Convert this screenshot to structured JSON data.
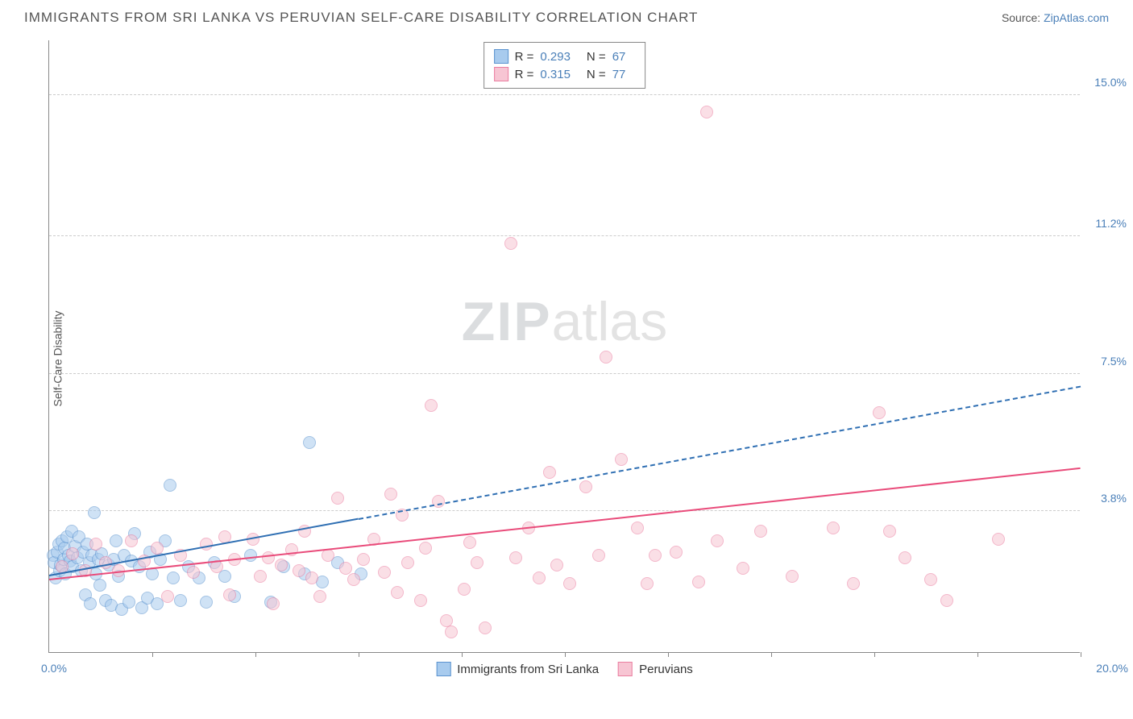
{
  "title": "IMMIGRANTS FROM SRI LANKA VS PERUVIAN SELF-CARE DISABILITY CORRELATION CHART",
  "source_label": "Source: ",
  "source_link_text": "ZipAtlas.com",
  "watermark_zip": "ZIP",
  "watermark_atlas": "atlas",
  "chart": {
    "type": "scatter",
    "ylabel": "Self-Care Disability",
    "xlim": [
      0,
      20
    ],
    "ylim": [
      0,
      16.5
    ],
    "x_start_label": "0.0%",
    "x_end_label": "20.0%",
    "y_gridlines": [
      {
        "value": 3.8,
        "label": "3.8%"
      },
      {
        "value": 7.5,
        "label": "7.5%"
      },
      {
        "value": 11.2,
        "label": "11.2%"
      },
      {
        "value": 15.0,
        "label": "15.0%"
      }
    ],
    "x_tick_step": 2,
    "background_color": "#ffffff",
    "grid_color": "#cccccc",
    "point_radius": 8,
    "point_opacity": 0.55,
    "series": [
      {
        "key": "sri_lanka",
        "label": "Immigrants from Sri Lanka",
        "color_fill": "#a8cbee",
        "color_stroke": "#5b93cf",
        "R": "0.293",
        "N": "67",
        "trend": {
          "x1": 0,
          "y1": 2.1,
          "x2": 20,
          "y2": 7.2,
          "solid_until_x": 6.0
        },
        "points": [
          [
            0.08,
            2.6
          ],
          [
            0.1,
            2.4
          ],
          [
            0.12,
            2.0
          ],
          [
            0.15,
            2.7
          ],
          [
            0.18,
            2.9
          ],
          [
            0.2,
            2.2
          ],
          [
            0.22,
            2.35
          ],
          [
            0.25,
            3.0
          ],
          [
            0.28,
            2.5
          ],
          [
            0.3,
            2.8
          ],
          [
            0.32,
            2.1
          ],
          [
            0.35,
            3.1
          ],
          [
            0.38,
            2.6
          ],
          [
            0.4,
            2.45
          ],
          [
            0.43,
            3.25
          ],
          [
            0.46,
            2.3
          ],
          [
            0.5,
            2.85
          ],
          [
            0.55,
            2.55
          ],
          [
            0.58,
            3.1
          ],
          [
            0.62,
            2.2
          ],
          [
            0.66,
            2.7
          ],
          [
            0.7,
            1.55
          ],
          [
            0.74,
            2.9
          ],
          [
            0.78,
            2.4
          ],
          [
            0.8,
            1.3
          ],
          [
            0.83,
            2.6
          ],
          [
            0.88,
            3.75
          ],
          [
            0.9,
            2.1
          ],
          [
            0.95,
            2.5
          ],
          [
            0.98,
            1.8
          ],
          [
            1.02,
            2.65
          ],
          [
            1.1,
            1.4
          ],
          [
            1.15,
            2.35
          ],
          [
            1.2,
            1.25
          ],
          [
            1.25,
            2.5
          ],
          [
            1.3,
            3.0
          ],
          [
            1.35,
            2.05
          ],
          [
            1.4,
            1.15
          ],
          [
            1.45,
            2.6
          ],
          [
            1.55,
            1.35
          ],
          [
            1.6,
            2.45
          ],
          [
            1.65,
            3.2
          ],
          [
            1.75,
            2.3
          ],
          [
            1.8,
            1.2
          ],
          [
            1.9,
            1.45
          ],
          [
            1.95,
            2.7
          ],
          [
            2.0,
            2.1
          ],
          [
            2.1,
            1.3
          ],
          [
            2.15,
            2.5
          ],
          [
            2.25,
            3.0
          ],
          [
            2.35,
            4.5
          ],
          [
            2.4,
            2.0
          ],
          [
            2.55,
            1.4
          ],
          [
            2.7,
            2.3
          ],
          [
            2.9,
            2.0
          ],
          [
            3.05,
            1.35
          ],
          [
            3.2,
            2.4
          ],
          [
            3.4,
            2.05
          ],
          [
            3.6,
            1.5
          ],
          [
            3.9,
            2.6
          ],
          [
            4.3,
            1.35
          ],
          [
            4.55,
            2.3
          ],
          [
            4.95,
            2.1
          ],
          [
            5.05,
            5.65
          ],
          [
            5.3,
            1.9
          ],
          [
            5.6,
            2.4
          ],
          [
            6.05,
            2.1
          ]
        ]
      },
      {
        "key": "peruvians",
        "label": "Peruvians",
        "color_fill": "#f7c5d3",
        "color_stroke": "#ea7ea0",
        "R": "0.315",
        "N": "77",
        "trend": {
          "x1": 0,
          "y1": 2.0,
          "x2": 20,
          "y2": 5.0,
          "solid_until_x": 20
        },
        "points": [
          [
            0.25,
            2.3
          ],
          [
            0.45,
            2.65
          ],
          [
            0.7,
            2.2
          ],
          [
            0.9,
            2.9
          ],
          [
            1.1,
            2.4
          ],
          [
            1.35,
            2.2
          ],
          [
            1.6,
            3.0
          ],
          [
            1.85,
            2.45
          ],
          [
            2.1,
            2.8
          ],
          [
            2.3,
            1.5
          ],
          [
            2.55,
            2.6
          ],
          [
            2.8,
            2.15
          ],
          [
            3.05,
            2.9
          ],
          [
            3.25,
            2.3
          ],
          [
            3.4,
            3.1
          ],
          [
            3.5,
            1.55
          ],
          [
            3.6,
            2.5
          ],
          [
            3.95,
            3.05
          ],
          [
            4.1,
            2.05
          ],
          [
            4.25,
            2.55
          ],
          [
            4.35,
            1.3
          ],
          [
            4.5,
            2.35
          ],
          [
            4.7,
            2.75
          ],
          [
            4.85,
            2.2
          ],
          [
            4.95,
            3.25
          ],
          [
            5.1,
            2.0
          ],
          [
            5.25,
            1.5
          ],
          [
            5.4,
            2.6
          ],
          [
            5.6,
            4.15
          ],
          [
            5.75,
            2.25
          ],
          [
            5.9,
            1.95
          ],
          [
            6.1,
            2.5
          ],
          [
            6.3,
            3.05
          ],
          [
            6.5,
            2.15
          ],
          [
            6.62,
            4.25
          ],
          [
            6.75,
            1.6
          ],
          [
            6.85,
            3.7
          ],
          [
            6.95,
            2.4
          ],
          [
            7.2,
            1.4
          ],
          [
            7.3,
            2.8
          ],
          [
            7.4,
            6.65
          ],
          [
            7.55,
            4.05
          ],
          [
            7.7,
            0.85
          ],
          [
            7.8,
            0.55
          ],
          [
            8.05,
            1.7
          ],
          [
            8.15,
            2.95
          ],
          [
            8.3,
            2.4
          ],
          [
            8.45,
            0.65
          ],
          [
            8.95,
            11.0
          ],
          [
            9.05,
            2.55
          ],
          [
            9.3,
            3.35
          ],
          [
            9.5,
            2.0
          ],
          [
            9.7,
            4.85
          ],
          [
            9.85,
            2.35
          ],
          [
            10.1,
            1.85
          ],
          [
            10.4,
            4.45
          ],
          [
            10.65,
            2.6
          ],
          [
            10.8,
            7.95
          ],
          [
            11.1,
            5.2
          ],
          [
            11.4,
            3.35
          ],
          [
            11.6,
            1.85
          ],
          [
            11.75,
            2.6
          ],
          [
            12.15,
            2.7
          ],
          [
            12.6,
            1.9
          ],
          [
            12.75,
            14.55
          ],
          [
            12.95,
            3.0
          ],
          [
            13.45,
            2.25
          ],
          [
            13.8,
            3.25
          ],
          [
            14.4,
            2.05
          ],
          [
            15.2,
            3.35
          ],
          [
            15.6,
            1.85
          ],
          [
            16.1,
            6.45
          ],
          [
            16.3,
            3.25
          ],
          [
            16.6,
            2.55
          ],
          [
            17.1,
            1.95
          ],
          [
            17.4,
            1.4
          ],
          [
            18.4,
            3.05
          ]
        ]
      }
    ],
    "stats_labels": {
      "R": "R =",
      "N": "N ="
    }
  }
}
